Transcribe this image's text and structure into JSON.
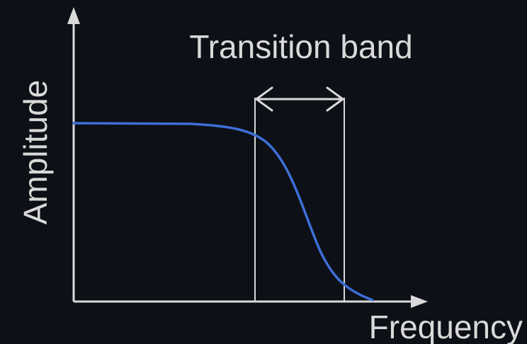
{
  "labels": {
    "y_axis": "Amplitude",
    "x_axis": "Frequency",
    "band": "Transition band"
  },
  "colors": {
    "background": "#0d1016",
    "axis": "#d9d9d9",
    "text": "#d9d9d9",
    "curve": "#3e6fd8",
    "band_lines": "#d9d9d9"
  },
  "icons": {
    "y_arrow": "arrow-up-icon",
    "x_arrow": "arrow-right-icon",
    "band_arrow": "double-arrow-icon"
  }
}
